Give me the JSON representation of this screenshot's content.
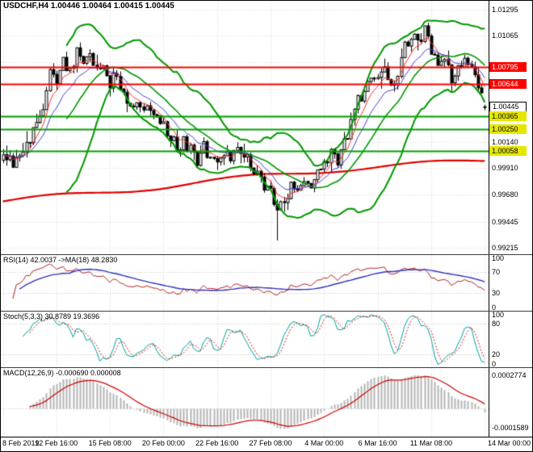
{
  "header": {
    "symbol_line": "USDCHF,H4 1.00446 1.00464 1.00415 1.00445"
  },
  "colors": {
    "background": "#ffffff",
    "grid": "#d8d8d8",
    "outline": "#000000",
    "bull_fill": "#ffffff",
    "bear_fill": "#000000",
    "bollinger": "#009900",
    "slow_ma": "#e00000",
    "fast_ma_red": "#ff3030",
    "fast_ma_blue": "#4040d0",
    "hline_red": "#ff0000",
    "hline_green": "#00a000",
    "label_red_bg": "#ff0000",
    "label_red_fg": "#ffffff",
    "label_yellow_bg": "#e6e600",
    "label_yellow_fg": "#000000",
    "rsi_line": "#b22222",
    "rsi_ma": "#3030c0",
    "stoch_k": "#00a0a0",
    "stoch_d": "#d02020",
    "macd_hist": "#b4b4b4",
    "macd_signal": "#d00000",
    "level_line": "#c0c0c0",
    "axis_text": "#000000"
  },
  "chart_data": {
    "type": "candlestick",
    "symbol": "USDCHF",
    "timeframe": "H4",
    "current_bar": {
      "open": 1.00446,
      "high": 1.00464,
      "low": 1.00415,
      "close": 1.00445
    },
    "candle_count": 145,
    "close_anchors": [
      [
        0,
        1.0003
      ],
      [
        3,
        0.9997
      ],
      [
        6,
        1.0008
      ],
      [
        9,
        1.0022
      ],
      [
        12,
        1.0046
      ],
      [
        14,
        1.0072
      ],
      [
        16,
        1.0068
      ],
      [
        18,
        1.0086
      ],
      [
        20,
        1.0074
      ],
      [
        22,
        1.0091
      ],
      [
        24,
        1.0083
      ],
      [
        26,
        1.0093
      ],
      [
        28,
        1.0078
      ],
      [
        30,
        1.0084
      ],
      [
        32,
        1.0066
      ],
      [
        34,
        1.0072
      ],
      [
        36,
        1.0057
      ],
      [
        38,
        1.0044
      ],
      [
        40,
        1.0049
      ],
      [
        42,
        1.0039
      ],
      [
        44,
        1.0046
      ],
      [
        46,
        1.0033
      ],
      [
        48,
        1.0028
      ],
      [
        50,
        1.0018
      ],
      [
        52,
        1.0008
      ],
      [
        54,
        1.0016
      ],
      [
        56,
        1.0006
      ],
      [
        58,
        0.9998
      ],
      [
        60,
        1.0009
      ],
      [
        62,
        1.0001
      ],
      [
        64,
        0.9996
      ],
      [
        66,
        1.0006
      ],
      [
        68,
        0.9999
      ],
      [
        70,
        1.0011
      ],
      [
        72,
        1.0003
      ],
      [
        74,
        0.9993
      ],
      [
        76,
        0.9986
      ],
      [
        78,
        0.9976
      ],
      [
        80,
        0.9969
      ],
      [
        82,
        0.9954
      ],
      [
        84,
        0.9963
      ],
      [
        86,
        0.9976
      ],
      [
        88,
        0.9969
      ],
      [
        90,
        0.9981
      ],
      [
        92,
        0.9973
      ],
      [
        94,
        0.9986
      ],
      [
        96,
        0.9993
      ],
      [
        98,
        1.0003
      ],
      [
        100,
        0.9997
      ],
      [
        102,
        1.0012
      ],
      [
        104,
        1.0031
      ],
      [
        106,
        1.0049
      ],
      [
        108,
        1.0061
      ],
      [
        110,
        1.0073
      ],
      [
        112,
        1.0066
      ],
      [
        114,
        1.0079
      ],
      [
        116,
        1.0062
      ],
      [
        118,
        1.0076
      ],
      [
        120,
        1.0096
      ],
      [
        122,
        1.0108
      ],
      [
        124,
        1.0101
      ],
      [
        126,
        1.0112
      ],
      [
        128,
        1.0091
      ],
      [
        130,
        1.0079
      ],
      [
        132,
        1.0086
      ],
      [
        134,
        1.0071
      ],
      [
        136,
        1.0081
      ],
      [
        138,
        1.0088
      ],
      [
        140,
        1.0076
      ],
      [
        142,
        1.0061
      ],
      [
        144,
        1.00445
      ]
    ],
    "spike_low": {
      "index": 82,
      "price": 0.9928
    },
    "y_axis": {
      "price_top": 1.0137,
      "price_bottom": 0.9916,
      "ticks": [
        {
          "t": "1.01295",
          "v": 1.01295
        },
        {
          "t": "1.01065",
          "v": 1.01065
        },
        {
          "t": "1.00140",
          "v": 1.0014
        },
        {
          "t": "0.99910",
          "v": 0.9991
        },
        {
          "t": "0.99680",
          "v": 0.9968
        },
        {
          "t": "0.99445",
          "v": 0.99445
        },
        {
          "t": "0.99215",
          "v": 0.99215
        }
      ],
      "grid_levels": [
        1.01295,
        1.01065,
        1.00835,
        1.00605,
        1.00375,
        1.0014,
        0.9991,
        0.9968,
        0.99445,
        0.99215
      ]
    },
    "price_labels": [
      {
        "text": "1.00795",
        "value": 1.00795,
        "style": "red"
      },
      {
        "text": "1.00644",
        "value": 1.00644,
        "style": "red"
      },
      {
        "text": "1.00445",
        "value": 1.00445,
        "style": "current"
      },
      {
        "text": "1.00365",
        "value": 1.00365,
        "style": "yellow"
      },
      {
        "text": "1.00250",
        "value": 1.0025,
        "style": "yellow"
      },
      {
        "text": "1.00058",
        "value": 1.00058,
        "style": "yellow"
      }
    ],
    "hlines": [
      {
        "value": 1.00795,
        "color": "red"
      },
      {
        "value": 1.00644,
        "color": "red"
      },
      {
        "value": 1.00365,
        "color": "green"
      },
      {
        "value": 1.0025,
        "color": "green"
      },
      {
        "value": 1.00058,
        "color": "green"
      }
    ],
    "overlays": {
      "bollinger_period": 20,
      "bollinger_deviation": 2,
      "fast_ma_periods": [
        6,
        12
      ],
      "slow_ma_anchors": [
        [
          0,
          0.9962
        ],
        [
          48,
          0.9975
        ],
        [
          80,
          0.9985
        ],
        [
          100,
          0.999
        ],
        [
          144,
          0.9998
        ]
      ]
    },
    "x_axis": {
      "labels": [
        {
          "index": 0,
          "text": "8 Feb 2019"
        },
        {
          "index": 16,
          "text": "12 Feb 16:00"
        },
        {
          "index": 32,
          "text": "15 Feb 08:00"
        },
        {
          "index": 48,
          "text": "20 Feb 00:00"
        },
        {
          "index": 64,
          "text": "22 Feb 16:00"
        },
        {
          "index": 80,
          "text": "27 Feb 08:00"
        },
        {
          "index": 96,
          "text": "4 Mar 00:00"
        },
        {
          "index": 112,
          "text": "6 Mar 16:00"
        },
        {
          "index": 128,
          "text": "11 Mar 08:00"
        },
        {
          "index": 144,
          "text": "14 Mar 00:00"
        }
      ]
    },
    "indicators": {
      "rsi": {
        "label": "RSI(14) 42.0037 ->MA(18) 48.2830",
        "period": 14,
        "ma_period": 18,
        "value": "42.0037",
        "ma_value": "48.2830",
        "ticks": [
          {
            "t": "100",
            "v": 100
          },
          {
            "t": "70",
            "v": 70
          },
          {
            "t": "30",
            "v": 30
          },
          {
            "t": "0",
            "v": 0
          }
        ],
        "levels": [
          70,
          30
        ]
      },
      "stoch": {
        "label": "Stoch(5,3,3) 30.8789 19.3696",
        "k_period": 5,
        "d_period": 3,
        "slowing": 3,
        "value_k": "30.8789",
        "value_d": "19.3696",
        "ticks": [
          {
            "t": "100",
            "v": 100
          },
          {
            "t": "80",
            "v": 80
          },
          {
            "t": "20",
            "v": 20
          },
          {
            "t": "0",
            "v": 0
          }
        ],
        "levels": [
          80,
          20
        ]
      },
      "macd": {
        "label": "MACD(12,26,9) -0.000690 0.000008",
        "fast": 12,
        "slow": 26,
        "signal": 9,
        "value": "-0.000690",
        "signal_value": "0.000008",
        "ticks": [
          {
            "t": "0.0002774",
            "pos": 0.05
          },
          {
            "t": "-0.0001589",
            "pos": 0.92
          }
        ]
      }
    }
  }
}
